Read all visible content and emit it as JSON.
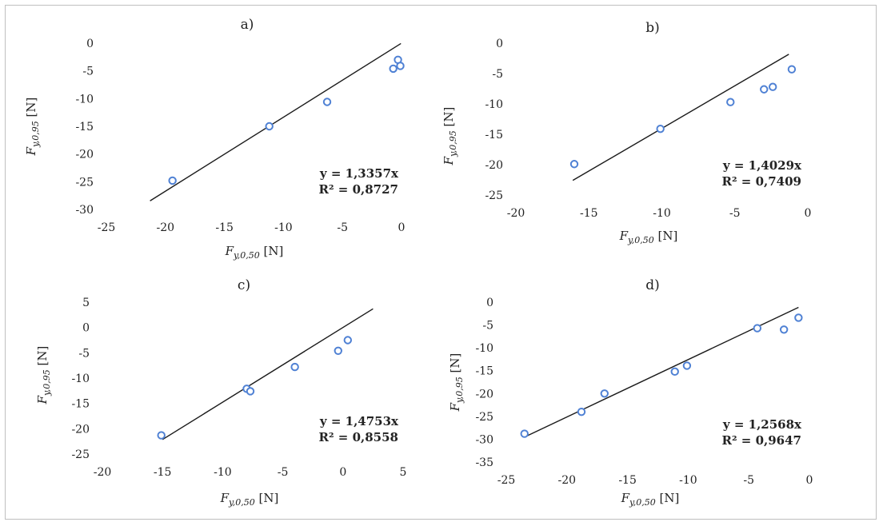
{
  "chart_data": [
    {
      "type": "scatter",
      "title": "a)",
      "xlabel": {
        "main": "F",
        "sub": "y,0,50",
        "unit": " [N]"
      },
      "ylabel": {
        "main": "F",
        "sub": "y,0,95",
        "unit": " [N]"
      },
      "xlim": [
        -25,
        0
      ],
      "ylim": [
        -30,
        0
      ],
      "xticks": [
        -25,
        -20,
        -15,
        -10,
        -5,
        0
      ],
      "yticks": [
        0,
        -5,
        -10,
        -15,
        -20,
        -25,
        -30
      ],
      "points": [
        [
          -19.4,
          -24.8
        ],
        [
          -11.2,
          -15.0
        ],
        [
          -6.3,
          -10.6
        ],
        [
          -0.7,
          -4.6
        ],
        [
          -0.3,
          -3.0
        ],
        [
          -0.1,
          -4.1
        ]
      ],
      "trendline": {
        "slope": 1.3357,
        "x_from": -21.3,
        "x_to": -0.05
      },
      "equation": "y = 1,3357x",
      "r2": "R² = 0,8727",
      "marker_color": "#4f81d4",
      "line_color": "#1a1a1a"
    },
    {
      "type": "scatter",
      "title": "b)",
      "xlabel": {
        "main": "F",
        "sub": "y,0,50",
        "unit": " [N]"
      },
      "ylabel": {
        "main": "F",
        "sub": "y,0,95",
        "unit": " [N]"
      },
      "xlim": [
        -20,
        0
      ],
      "ylim": [
        -25,
        0
      ],
      "xticks": [
        -20,
        -15,
        -10,
        -5,
        0
      ],
      "yticks": [
        0,
        -5,
        -10,
        -15,
        -20,
        -25
      ],
      "points": [
        [
          -16.0,
          -19.9
        ],
        [
          -10.1,
          -14.1
        ],
        [
          -5.3,
          -9.7
        ],
        [
          -3.0,
          -7.6
        ],
        [
          -2.4,
          -7.2
        ],
        [
          -1.1,
          -4.3
        ]
      ],
      "trendline": {
        "slope": 1.4029,
        "x_from": -16.1,
        "x_to": -1.3
      },
      "equation": "y = 1,4029x",
      "r2": "R² = 0,7409",
      "marker_color": "#4f81d4",
      "line_color": "#1a1a1a"
    },
    {
      "type": "scatter",
      "title": "c)",
      "xlabel": {
        "main": "F",
        "sub": "y,0,50",
        "unit": " [N]"
      },
      "ylabel": {
        "main": "F",
        "sub": "y,0,95",
        "unit": " [N]"
      },
      "xlim": [
        -20,
        5
      ],
      "ylim": [
        -25,
        5
      ],
      "xticks": [
        -20,
        -15,
        -10,
        -5,
        0,
        5
      ],
      "yticks": [
        5,
        0,
        -5,
        -10,
        -15,
        -20,
        -25
      ],
      "points": [
        [
          -15.1,
          -21.3
        ],
        [
          -8.0,
          -12.1
        ],
        [
          -7.7,
          -12.6
        ],
        [
          -4.0,
          -7.8
        ],
        [
          -0.4,
          -4.6
        ],
        [
          0.4,
          -2.5
        ]
      ],
      "trendline": {
        "slope": 1.4753,
        "x_from": -15.0,
        "x_to": 2.5
      },
      "equation": "y = 1,4753x",
      "r2": "R² = 0,8558",
      "marker_color": "#4f81d4",
      "line_color": "#1a1a1a"
    },
    {
      "type": "scatter",
      "title": "d)",
      "xlabel": {
        "main": "F",
        "sub": "y,0,50",
        "unit": " [N]"
      },
      "ylabel": {
        "main": "F",
        "sub": "y,0,95",
        "unit": " [N]"
      },
      "xlim": [
        -25,
        0
      ],
      "ylim": [
        -35,
        0
      ],
      "xticks": [
        -25,
        -20,
        -15,
        -10,
        -5,
        0
      ],
      "yticks": [
        0,
        -5,
        -10,
        -15,
        -20,
        -25,
        -30,
        -35
      ],
      "points": [
        [
          -23.5,
          -28.8
        ],
        [
          -18.8,
          -24.0
        ],
        [
          -16.9,
          -20.0
        ],
        [
          -11.1,
          -15.2
        ],
        [
          -10.1,
          -13.9
        ],
        [
          -4.3,
          -5.7
        ],
        [
          -2.1,
          -6.0
        ],
        [
          -0.9,
          -3.4
        ]
      ],
      "trendline": {
        "slope": 1.2568,
        "x_from": -23.5,
        "x_to": -0.9
      },
      "equation": "y = 1,2568x",
      "r2": "R² = 0,9647",
      "marker_color": "#4f81d4",
      "line_color": "#1a1a1a"
    }
  ]
}
